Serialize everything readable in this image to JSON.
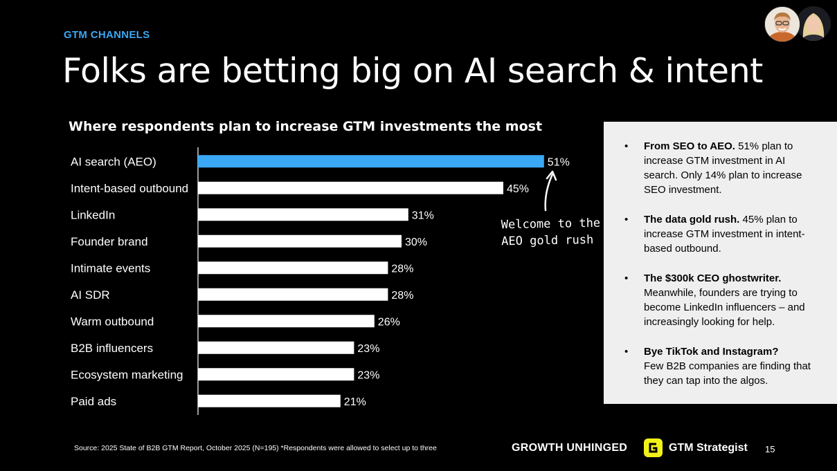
{
  "header": {
    "eyebrow": "GTM CHANNELS",
    "title": "Folks are betting big on AI search & intent"
  },
  "chart_data": {
    "type": "bar",
    "orientation": "horizontal",
    "title": "Where respondents plan to increase GTM investments the most",
    "categories": [
      "AI search (AEO)",
      "Intent-based outbound",
      "LinkedIn",
      "Founder brand",
      "Intimate events",
      "AI SDR",
      "Warm outbound",
      "B2B influencers",
      "Ecosystem marketing",
      "Paid ads"
    ],
    "values": [
      51,
      45,
      31,
      30,
      28,
      28,
      26,
      23,
      23,
      21
    ],
    "value_labels": [
      "51%",
      "45%",
      "31%",
      "30%",
      "28%",
      "28%",
      "26%",
      "23%",
      "23%",
      "21%"
    ],
    "highlight_index": 0,
    "colors": {
      "highlight": "#3aa8f5",
      "default": "#ffffff"
    },
    "xlim": [
      0,
      60
    ],
    "grid": false
  },
  "annotation": {
    "line1": "Welcome to the",
    "line2": "AEO gold rush"
  },
  "insights": [
    {
      "heading": "From SEO to AEO.",
      "body": "51% plan to increase GTM investment in AI search. Only 14% plan to increase SEO investment."
    },
    {
      "heading": "The data gold rush.",
      "body": "45% plan to increase GTM investment in intent-based outbound."
    },
    {
      "heading": "The $300k CEO ghostwriter.",
      "body": "Meanwhile, founders are trying to become LinkedIn influencers – and increasingly looking for help."
    },
    {
      "heading": "Bye TikTok and Instagram?",
      "body": "Few B2B companies are finding that they can tap into the algos."
    }
  ],
  "footer": {
    "source": "Source: 2025 State of B2B GTM Report, October 2025 (N=195) *Respondents were allowed to select up to three",
    "brand1": "GROWTH UNHINGED",
    "brand2": "GTM Strategist",
    "brand2_icon": "g-logo-icon",
    "page": "15"
  }
}
